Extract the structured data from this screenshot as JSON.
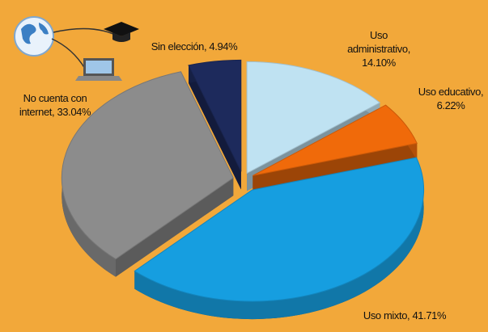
{
  "chart_data": {
    "type": "pie",
    "values": [
      4.94,
      14.1,
      6.22,
      41.71,
      33.04
    ],
    "value_labels": [
      "Sin elección, 4.94%",
      "Uso\nadministrativo,\n14.10%",
      "Uso educativo,\n6.22%",
      "Uso mixto, 41.71%",
      "No cuenta con\ninternet, 33.04%"
    ],
    "colors": [
      "#1d2a5c",
      "#bfe2f2",
      "#f06a0a",
      "#169ee0",
      "#8c8c8c"
    ],
    "start_angle": -17.8
  }
}
